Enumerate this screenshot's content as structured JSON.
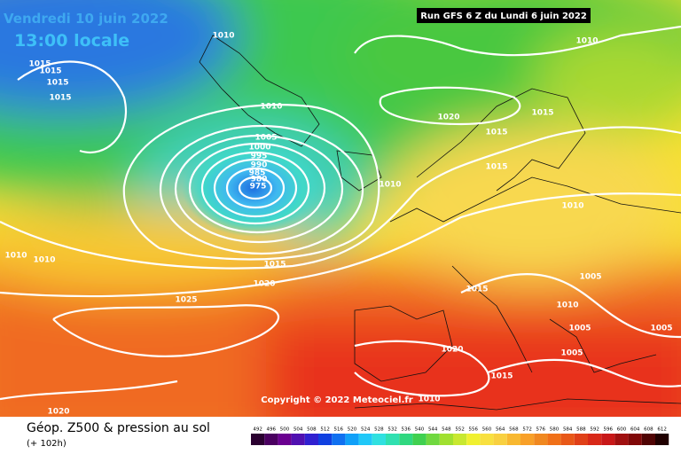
{
  "header": {
    "date": "Vendredi 10 juin 2022",
    "time": "13:00 locale",
    "run": "Run GFS 6 Z du Lundi 6 juin 2022"
  },
  "copyright": "Copyright © 2022 Meteociel.fr",
  "footer": {
    "title": "Géop. Z500 & pression au sol",
    "lead": "(+ 102h)"
  },
  "scale": [
    492,
    496,
    500,
    504,
    508,
    512,
    516,
    520,
    524,
    528,
    532,
    536,
    540,
    544,
    548,
    552,
    556,
    560,
    564,
    568,
    572,
    576,
    580,
    584,
    588,
    592,
    596,
    600,
    604,
    608,
    612
  ],
  "isobar_labels": [
    1010,
    1010,
    1015,
    1015,
    1015,
    1015,
    1010,
    1020,
    1015,
    1015,
    1005,
    1000,
    995,
    990,
    985,
    980,
    975,
    1010,
    1015,
    1010,
    1010,
    1010,
    1015,
    1020,
    1005,
    1015,
    1025,
    1010,
    1005,
    1005,
    1020,
    1005,
    1015,
    1010,
    1020
  ]
}
